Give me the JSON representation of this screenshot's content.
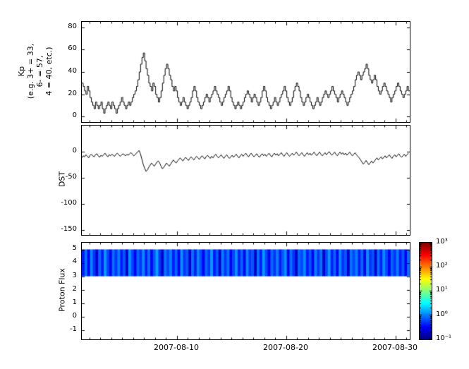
{
  "figure": {
    "background": "#ffffff"
  },
  "xaxis": {
    "xlim_days": [
      1.3,
      31.3
    ],
    "ticks": [
      {
        "label": "2007-08-10",
        "day": 10
      },
      {
        "label": "2007-08-20",
        "day": 20
      },
      {
        "label": "2007-08-30",
        "day": 30
      }
    ],
    "minor_tick_every_days": 1
  },
  "colorbar": {
    "tick_labels": [
      "10³",
      "10²",
      "10¹",
      "10⁰",
      "10⁻¹"
    ],
    "scale": "log",
    "range": [
      0.1,
      1000
    ],
    "colormap": "jet"
  },
  "chart_data": [
    {
      "type": "line",
      "name": "kp",
      "ylabel": "Kp\n(e.g. 3+ = 33,\n6- = 57,\n4 = 40, etc.)",
      "ylim": [
        -5,
        85
      ],
      "yticks": [
        80,
        60,
        40,
        20,
        0
      ],
      "line_color": "#000000",
      "x_start_day": 1.3,
      "x_step_days": 0.125,
      "values": [
        30,
        27,
        23,
        20,
        27,
        23,
        17,
        13,
        10,
        7,
        13,
        10,
        7,
        10,
        13,
        7,
        3,
        7,
        10,
        13,
        10,
        7,
        13,
        10,
        7,
        3,
        7,
        10,
        13,
        17,
        13,
        10,
        7,
        10,
        13,
        10,
        13,
        17,
        20,
        23,
        27,
        33,
        40,
        47,
        53,
        57,
        50,
        43,
        37,
        30,
        27,
        23,
        30,
        27,
        20,
        17,
        13,
        17,
        23,
        30,
        37,
        43,
        47,
        43,
        37,
        33,
        27,
        23,
        27,
        23,
        17,
        13,
        10,
        13,
        17,
        13,
        10,
        7,
        10,
        13,
        17,
        23,
        27,
        23,
        17,
        13,
        10,
        7,
        10,
        13,
        17,
        20,
        17,
        13,
        17,
        20,
        23,
        27,
        23,
        20,
        17,
        13,
        10,
        13,
        17,
        20,
        23,
        27,
        23,
        17,
        13,
        10,
        7,
        10,
        13,
        10,
        7,
        10,
        13,
        17,
        20,
        23,
        20,
        17,
        13,
        17,
        20,
        17,
        13,
        10,
        13,
        17,
        23,
        27,
        23,
        17,
        13,
        10,
        7,
        10,
        13,
        17,
        13,
        10,
        13,
        17,
        20,
        23,
        27,
        23,
        17,
        13,
        10,
        13,
        17,
        23,
        27,
        30,
        27,
        23,
        17,
        13,
        10,
        13,
        17,
        20,
        17,
        13,
        10,
        7,
        10,
        13,
        17,
        13,
        10,
        13,
        17,
        20,
        23,
        20,
        17,
        20,
        23,
        27,
        23,
        20,
        17,
        13,
        17,
        20,
        23,
        20,
        17,
        13,
        10,
        13,
        17,
        20,
        23,
        27,
        33,
        37,
        40,
        37,
        33,
        37,
        40,
        43,
        47,
        43,
        37,
        33,
        30,
        33,
        37,
        33,
        27,
        23,
        20,
        23,
        27,
        30,
        27,
        23,
        20,
        17,
        13,
        17,
        20,
        23,
        27,
        30,
        27,
        23,
        20,
        17,
        20,
        23,
        27,
        23
      ]
    },
    {
      "type": "line",
      "name": "dst",
      "ylabel": "DST",
      "ylim": [
        -160,
        50
      ],
      "yticks": [
        0,
        -50,
        -100,
        -150
      ],
      "line_color": "#000000",
      "x_start_day": 1.3,
      "x_step_days": 0.125,
      "values": [
        -12,
        -8,
        -10,
        -6,
        -9,
        -12,
        -7,
        -5,
        -8,
        -10,
        -6,
        -4,
        -8,
        -11,
        -7,
        -9,
        -6,
        -3,
        -7,
        -10,
        -6,
        -8,
        -5,
        -7,
        -9,
        -5,
        -3,
        -6,
        -9,
        -7,
        -4,
        -6,
        -8,
        -5,
        -7,
        -4,
        -2,
        -5,
        -8,
        -6,
        -3,
        0,
        2,
        -5,
        -15,
        -25,
        -32,
        -38,
        -35,
        -30,
        -26,
        -22,
        -25,
        -28,
        -24,
        -20,
        -18,
        -22,
        -28,
        -33,
        -30,
        -26,
        -22,
        -25,
        -28,
        -24,
        -20,
        -16,
        -19,
        -22,
        -18,
        -15,
        -12,
        -15,
        -18,
        -14,
        -11,
        -14,
        -17,
        -13,
        -10,
        -13,
        -16,
        -12,
        -9,
        -12,
        -15,
        -11,
        -8,
        -11,
        -14,
        -10,
        -7,
        -10,
        -13,
        -9,
        -12,
        -8,
        -5,
        -9,
        -12,
        -9,
        -6,
        -10,
        -13,
        -9,
        -6,
        -10,
        -13,
        -10,
        -7,
        -11,
        -8,
        -5,
        -9,
        -12,
        -8,
        -5,
        -9,
        -6,
        -3,
        -7,
        -10,
        -6,
        -3,
        -7,
        -10,
        -7,
        -4,
        -8,
        -11,
        -7,
        -4,
        -8,
        -5,
        -9,
        -6,
        -3,
        -7,
        -10,
        -6,
        -3,
        -7,
        -4,
        -8,
        -5,
        -2,
        -6,
        -9,
        -5,
        -2,
        -6,
        -9,
        -6,
        -3,
        -7,
        -4,
        -1,
        -5,
        -8,
        -5,
        -2,
        -6,
        -9,
        -5,
        -2,
        -6,
        -3,
        -7,
        -4,
        -1,
        -5,
        -8,
        -4,
        -1,
        -5,
        -8,
        -5,
        -2,
        -6,
        -3,
        0,
        -4,
        -7,
        -4,
        -1,
        -5,
        -8,
        -4,
        -1,
        -5,
        -2,
        -6,
        -3,
        -7,
        -4,
        -1,
        -5,
        -8,
        -5,
        -2,
        -6,
        -9,
        -12,
        -16,
        -20,
        -24,
        -21,
        -17,
        -21,
        -25,
        -22,
        -18,
        -22,
        -19,
        -15,
        -12,
        -16,
        -13,
        -10,
        -14,
        -11,
        -8,
        -12,
        -9,
        -6,
        -10,
        -13,
        -9,
        -6,
        -10,
        -7,
        -4,
        -8,
        -11,
        -8,
        -5,
        -9,
        -6,
        -3
      ]
    },
    {
      "type": "heatmap",
      "name": "proton_flux",
      "ylabel": "Proton Flux",
      "ylim": [
        -1.7,
        5.5
      ],
      "yticks": [
        5,
        4,
        3,
        2,
        1,
        0,
        -1
      ],
      "band_y": [
        3,
        5
      ],
      "colormap": "jet",
      "color_scale": "log",
      "clim": [
        0.1,
        1000
      ],
      "intensity": [
        0.4,
        0.9,
        0.3,
        1.1,
        0.5,
        0.2,
        0.8,
        0.4,
        1.3,
        0.6,
        0.3,
        0.9,
        0.5,
        1.0,
        0.4,
        0.7,
        0.2,
        1.2,
        0.6,
        0.3,
        0.8,
        0.5,
        1.1,
        0.4,
        0.9,
        0.3,
        0.7,
        1.4,
        0.5,
        0.2,
        0.9,
        0.6,
        1.0,
        0.4,
        0.8,
        0.3,
        1.2,
        0.5,
        0.7,
        0.2,
        0.9,
        0.4,
        1.1,
        0.6,
        0.3,
        0.8,
        0.5,
        1.3,
        0.4,
        0.7,
        0.2,
        1.0,
        0.5,
        0.9,
        0.3,
        0.6,
        1.2,
        0.4,
        0.8,
        0.3,
        1.1,
        0.5,
        0.7,
        0.2,
        0.9,
        0.4,
        1.3,
        0.6,
        0.3,
        0.8,
        0.5,
        1.0,
        0.4,
        0.7,
        1.2,
        0.3,
        0.9,
        0.5,
        0.2,
        0.8,
        0.6,
        1.1,
        0.4,
        0.7,
        0.3,
        1.0,
        0.5,
        0.9,
        0.2,
        0.6,
        1.3,
        0.4,
        0.8,
        0.3,
        1.1,
        0.5,
        0.7,
        0.2,
        0.9,
        0.6,
        1.0,
        0.4,
        0.8,
        0.3,
        1.2,
        0.5,
        0.7,
        0.2,
        0.9,
        0.4,
        1.1,
        0.6,
        0.3,
        0.8,
        0.5,
        1.0,
        0.4,
        0.7,
        0.3,
        0.9
      ]
    }
  ]
}
